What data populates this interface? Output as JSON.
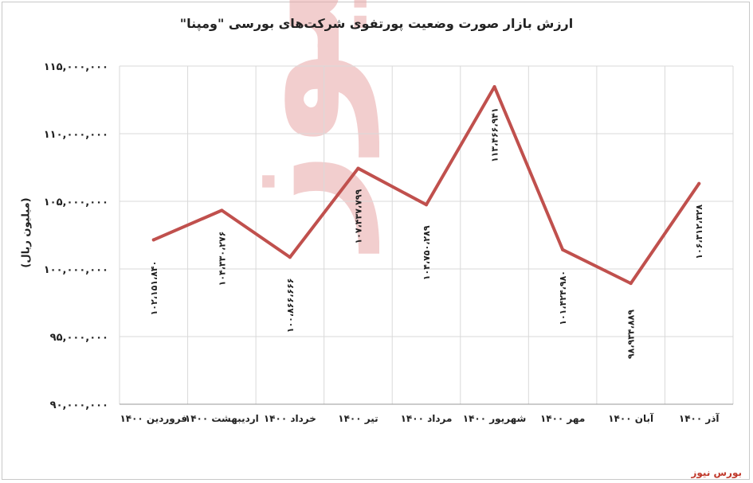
{
  "header": {
    "title": "ارزش بازار صورت وضعیت پورتفوی شرکت‌های بورسی \"ومپنا\""
  },
  "source_label": "بورس نیوز",
  "colors": {
    "line": "#c0504d",
    "grid": "#d9d9d9",
    "axis": "#999999"
  },
  "chart_data": {
    "type": "line",
    "title": "ارزش بازار صورت وضعیت پورتفوی شرکت‌های بورسی \"ومپنا\"",
    "xlabel": "",
    "ylabel": "(میلیون ریال)",
    "ylim": [
      90000000,
      115000000
    ],
    "yticks": [
      "۹۰,۰۰۰,۰۰۰",
      "۹۵,۰۰۰,۰۰۰",
      "۱۰۰,۰۰۰,۰۰۰",
      "۱۰۵,۰۰۰,۰۰۰",
      "۱۱۰,۰۰۰,۰۰۰",
      "۱۱۵,۰۰۰,۰۰۰"
    ],
    "ytick_values": [
      90000000,
      95000000,
      100000000,
      105000000,
      110000000,
      115000000
    ],
    "categories": [
      "فروردین ۱۴۰۰",
      "اردیبهشت ۱۴۰۰",
      "خرداد ۱۴۰۰",
      "تیر ۱۴۰۰",
      "مرداد ۱۴۰۰",
      "شهریور ۱۴۰۰",
      "مهر ۱۴۰۰",
      "آبان ۱۴۰۰",
      "آذر ۱۴۰۰"
    ],
    "values": [
      102151840,
      104330276,
      100866666,
      107437799,
      104750289,
      113466941,
      101424980,
      98934889,
      106312328
    ],
    "data_labels": [
      "۱۰۲،۱۵۱،۸۴۰",
      "۱۰۴،۳۳۰،۲۷۶",
      "۱۰۰،۸۶۶،۶۶۶",
      "۱۰۷،۴۳۷،۷۹۹",
      "۱۰۴،۷۵۰،۲۸۹",
      "۱۱۳،۴۶۶،۹۴۱",
      "۱۰۱،۴۲۴،۹۸۰",
      "۹۸،۹۳۴،۸۸۹",
      "۱۰۶،۳۱۲،۳۲۸"
    ],
    "grid": true,
    "legend": "none"
  }
}
